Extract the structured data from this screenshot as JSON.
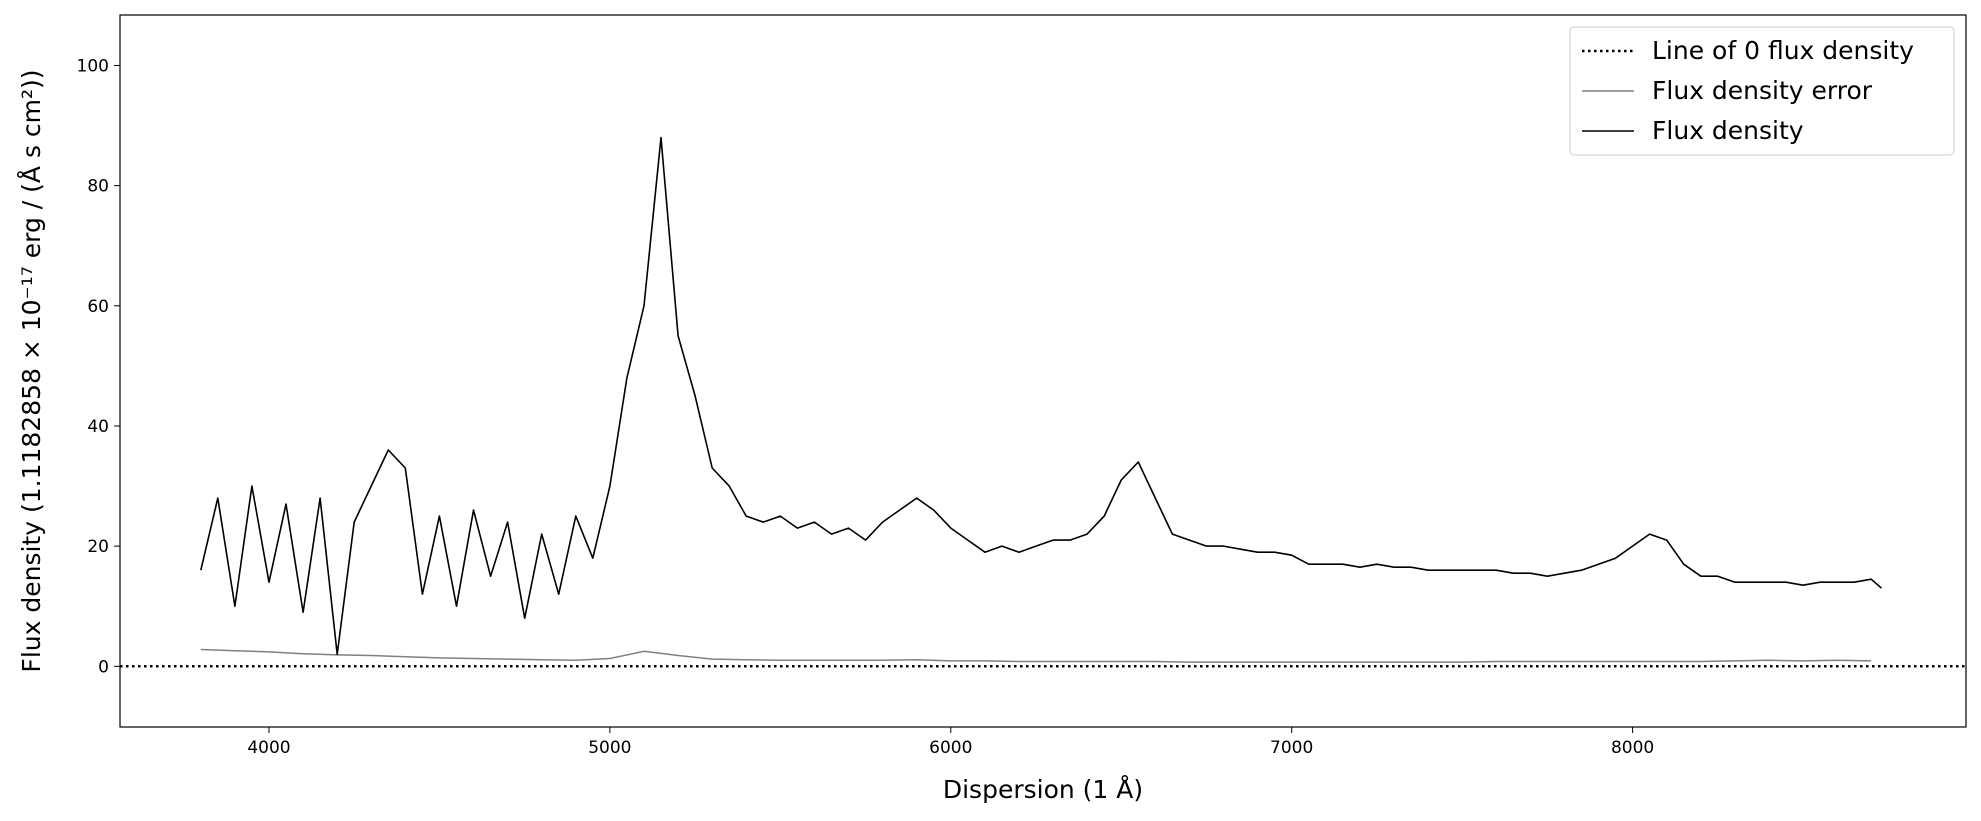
{
  "chart_data": {
    "type": "line",
    "x_label": "Dispersion (1 Å)",
    "y_label": "Flux density (1.1182858 × 10⁻¹⁷ erg / (Å s cm²))",
    "xlim": [
      3563,
      8978
    ],
    "ylim": [
      -10.1,
      108.4
    ],
    "xticks": [
      4000,
      5000,
      6000,
      7000,
      8000
    ],
    "yticks": [
      0,
      20,
      40,
      60,
      80,
      100
    ],
    "legend": "upper right",
    "series": [
      {
        "name": "Line of 0 flux density",
        "color": "#000000",
        "linestyle": "dotted",
        "width": 2.5,
        "x": [
          3563,
          8978
        ],
        "values": [
          0,
          0
        ]
      },
      {
        "name": "Flux density error",
        "color": "#808080",
        "linestyle": "solid",
        "width": 1.5,
        "x": [
          3800,
          3900,
          4000,
          4100,
          4200,
          4300,
          4400,
          4500,
          4600,
          4700,
          4800,
          4900,
          5000,
          5100,
          5200,
          5300,
          5400,
          5500,
          5600,
          5700,
          5800,
          5900,
          6000,
          6100,
          6200,
          6300,
          6400,
          6500,
          6600,
          6700,
          6800,
          6900,
          7000,
          7100,
          7200,
          7300,
          7400,
          7500,
          7600,
          7700,
          7800,
          7900,
          8000,
          8100,
          8200,
          8300,
          8400,
          8500,
          8600,
          8700
        ],
        "values": [
          2.8,
          2.6,
          2.4,
          2.1,
          1.9,
          1.8,
          1.6,
          1.4,
          1.3,
          1.2,
          1.1,
          1.0,
          1.3,
          2.5,
          1.8,
          1.2,
          1.1,
          1.0,
          1.0,
          1.0,
          1.0,
          1.1,
          0.9,
          0.9,
          0.8,
          0.8,
          0.8,
          0.8,
          0.8,
          0.7,
          0.7,
          0.7,
          0.7,
          0.7,
          0.7,
          0.7,
          0.7,
          0.7,
          0.8,
          0.8,
          0.8,
          0.8,
          0.8,
          0.8,
          0.8,
          0.9,
          1.0,
          0.9,
          1.0,
          0.9
        ]
      },
      {
        "name": "Flux density",
        "color": "#000000",
        "linestyle": "solid",
        "width": 1.6,
        "x": [
          3800,
          3850,
          3900,
          3950,
          4000,
          4050,
          4100,
          4150,
          4200,
          4250,
          4300,
          4350,
          4400,
          4450,
          4500,
          4550,
          4600,
          4650,
          4700,
          4750,
          4800,
          4850,
          4900,
          4950,
          5000,
          5050,
          5100,
          5150,
          5200,
          5250,
          5300,
          5350,
          5400,
          5450,
          5500,
          5550,
          5600,
          5650,
          5700,
          5750,
          5800,
          5850,
          5900,
          5950,
          6000,
          6050,
          6100,
          6150,
          6200,
          6250,
          6300,
          6350,
          6400,
          6450,
          6500,
          6550,
          6600,
          6650,
          6700,
          6750,
          6800,
          6850,
          6900,
          6950,
          7000,
          7050,
          7100,
          7150,
          7200,
          7250,
          7300,
          7350,
          7400,
          7450,
          7500,
          7550,
          7600,
          7650,
          7700,
          7750,
          7800,
          7850,
          7900,
          7950,
          8000,
          8050,
          8100,
          8150,
          8200,
          8250,
          8300,
          8350,
          8400,
          8450,
          8500,
          8550,
          8600,
          8650,
          8700,
          8730
        ],
        "values": [
          16,
          28,
          10,
          30,
          14,
          27,
          9,
          28,
          2,
          24,
          30,
          36,
          33,
          12,
          25,
          10,
          26,
          15,
          24,
          8,
          22,
          12,
          25,
          18,
          30,
          48,
          60,
          88,
          55,
          45,
          33,
          30,
          25,
          24,
          25,
          23,
          24,
          22,
          23,
          21,
          24,
          26,
          28,
          26,
          23,
          21,
          19,
          20,
          19,
          20,
          21,
          21,
          22,
          25,
          31,
          34,
          28,
          22,
          21,
          20,
          20,
          19.5,
          19,
          19,
          18.5,
          17,
          17,
          17,
          16.5,
          17,
          16.5,
          16.5,
          16,
          16,
          16,
          16,
          16,
          15.5,
          15.5,
          15,
          15.5,
          16,
          17,
          18,
          20,
          22,
          21,
          17,
          15,
          15,
          14,
          14,
          14,
          14,
          13.5,
          14,
          14,
          14,
          14.5,
          13
        ]
      }
    ]
  }
}
